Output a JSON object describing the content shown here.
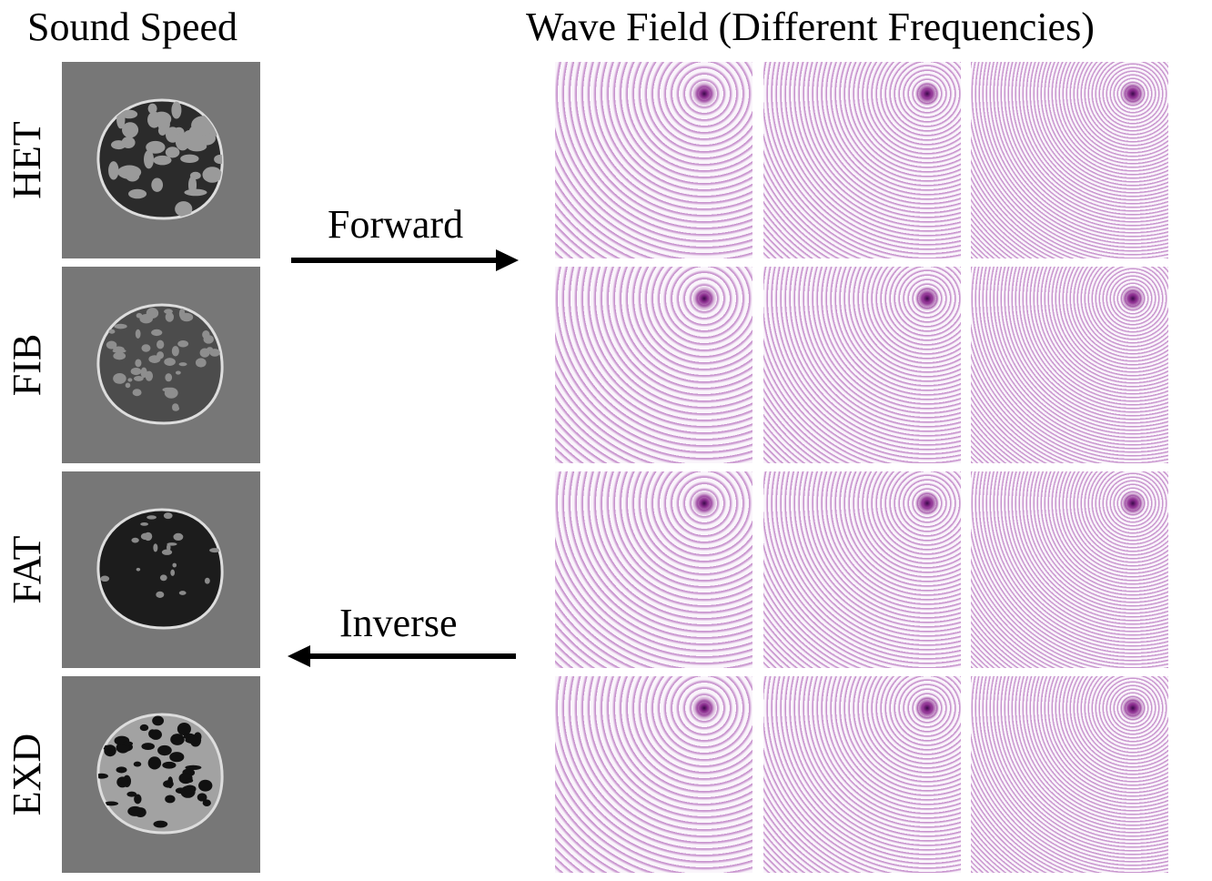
{
  "header": {
    "left_title": "Sound Speed",
    "right_title": "Wave Field (Different Frequencies)"
  },
  "rows": [
    {
      "label": "HET"
    },
    {
      "label": "FIB"
    },
    {
      "label": "FAT"
    },
    {
      "label": "EXD"
    }
  ],
  "arrows": {
    "forward": "Forward",
    "inverse": "Inverse"
  }
}
